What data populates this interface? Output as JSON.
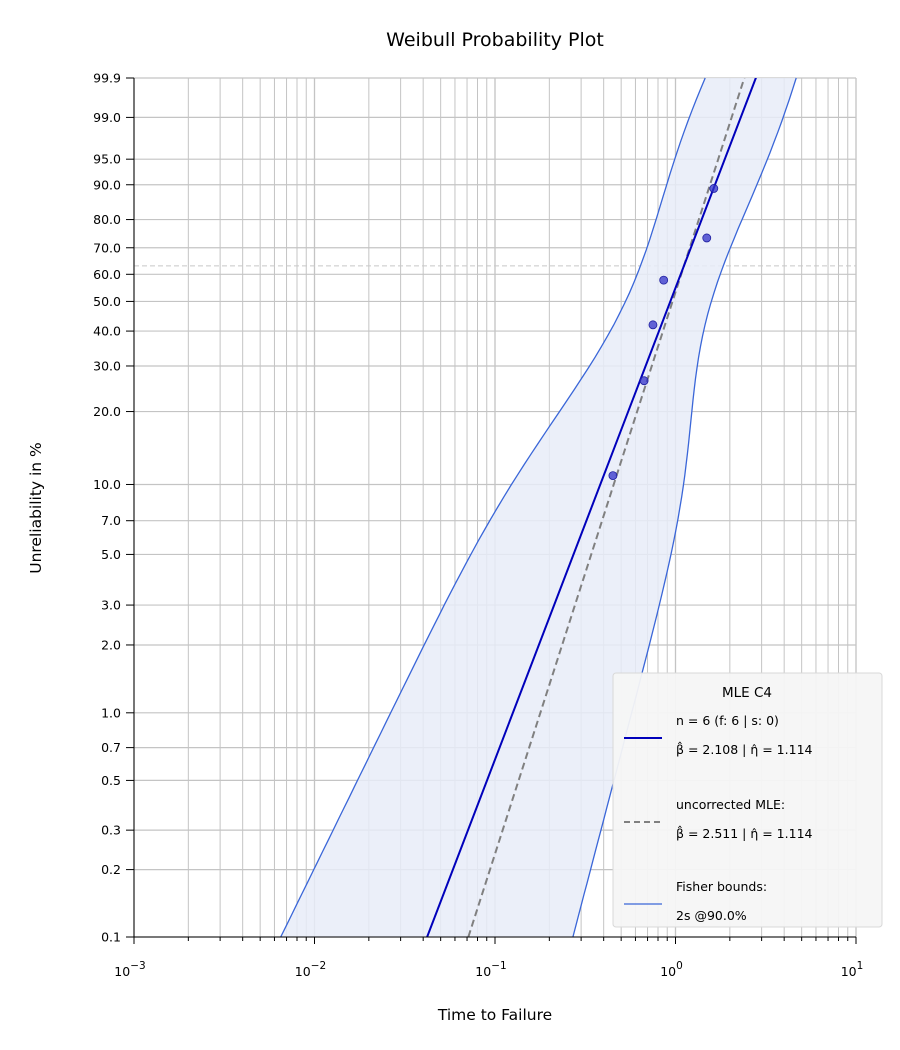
{
  "chart_data": {
    "type": "scatter",
    "title": "Weibull Probability Plot",
    "xlabel": "Time to Failure",
    "ylabel": "Unreliability in %",
    "x_scale": "log",
    "y_scale": "weibull",
    "xlim": [
      0.001,
      10
    ],
    "ylim_percent": [
      0.1,
      99.9
    ],
    "x_ticks": [
      {
        "value": 0.001,
        "base": "10",
        "exp": "−3"
      },
      {
        "value": 0.01,
        "base": "10",
        "exp": "−2"
      },
      {
        "value": 0.1,
        "base": "10",
        "exp": "−1"
      },
      {
        "value": 1,
        "base": "10",
        "exp": "0"
      },
      {
        "value": 10,
        "base": "10",
        "exp": "1"
      }
    ],
    "y_ticks": [
      "0.1",
      "0.2",
      "0.3",
      "0.5",
      "0.7",
      "1.0",
      "2.0",
      "3.0",
      "5.0",
      "7.0",
      "10.0",
      "20.0",
      "30.0",
      "40.0",
      "50.0",
      "60.0",
      "70.0",
      "80.0",
      "90.0",
      "95.0",
      "99.0",
      "99.9"
    ],
    "characteristic_life_line_percent": 63.2,
    "points": [
      {
        "x": 0.45,
        "y": 10.9
      },
      {
        "x": 0.67,
        "y": 26.4
      },
      {
        "x": 0.75,
        "y": 42.0
      },
      {
        "x": 0.86,
        "y": 57.8
      },
      {
        "x": 1.49,
        "y": 73.6
      },
      {
        "x": 1.63,
        "y": 89.1
      }
    ],
    "series": [
      {
        "name": "MLE C4",
        "kind": "fit",
        "beta": 2.108,
        "eta": 1.114
      },
      {
        "name": "uncorrected MLE",
        "kind": "fit",
        "beta": 2.511,
        "eta": 1.114
      },
      {
        "name": "Fisher bounds",
        "kind": "bounds",
        "lower_x_at_0.1": 0.27,
        "upper_x_at_0.1": 0.0065,
        "lower_x_at_99.9": 4.8,
        "upper_x_at_99.9": 1.4
      }
    ],
    "grid": true,
    "legend": {
      "position": "bottom-right",
      "title": "MLE C4",
      "entries": [
        {
          "line1": "n = 6 (f: 6 | s: 0)",
          "line2": "β̂ = 2.108 | η̂ = 1.114"
        },
        {
          "line1": "uncorrected MLE:",
          "line2": "β̂ = 2.511 | η̂ = 1.114"
        },
        {
          "line1": "Fisher bounds:",
          "line2": "2s @90.0%"
        }
      ]
    },
    "colors": {
      "fit": "#0000bb",
      "uncorrected": "#808080",
      "bounds_line": "#3a66d8",
      "bounds_fill": "#e8ecf8",
      "points": "#3232c8",
      "grid": "#c4c4c4"
    }
  }
}
